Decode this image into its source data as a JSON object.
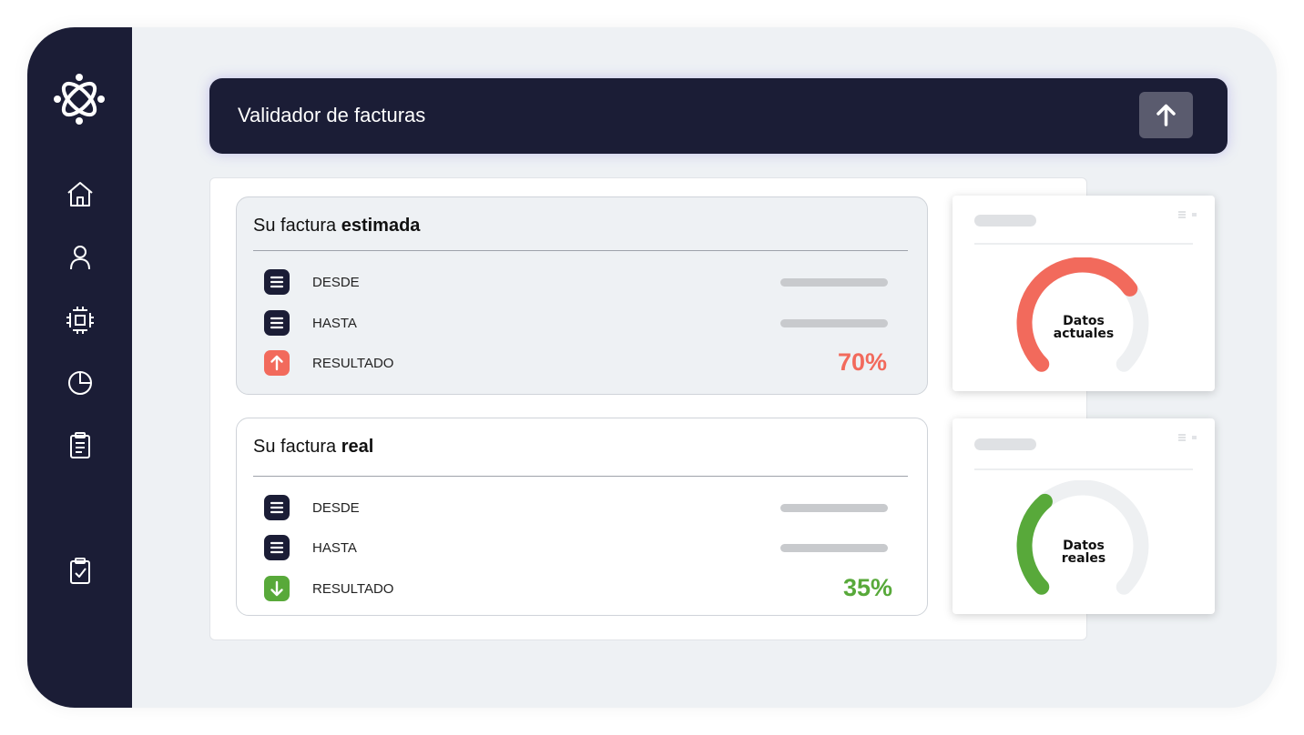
{
  "sidebar": {
    "logo": "atom-logo-icon",
    "items": [
      {
        "name": "home-icon"
      },
      {
        "name": "user-icon"
      },
      {
        "name": "chip-icon"
      },
      {
        "name": "pie-chart-icon"
      },
      {
        "name": "clipboard-list-icon"
      },
      {
        "name": "clipboard-check-icon"
      }
    ]
  },
  "header": {
    "title": "Validador de facturas",
    "upload_icon": "arrow-up-icon"
  },
  "estimated": {
    "title_prefix": "Su factura ",
    "title_bold": "estimada",
    "rows": [
      {
        "label": "DESDE",
        "icon": "list-icon"
      },
      {
        "label": "HASTA",
        "icon": "list-icon"
      },
      {
        "label": "RESULTADO",
        "icon": "arrow-up-icon",
        "value": "70%"
      }
    ],
    "result_color": "#f26a5c"
  },
  "real": {
    "title_prefix": "Su factura ",
    "title_bold": "real",
    "rows": [
      {
        "label": "DESDE",
        "icon": "list-icon"
      },
      {
        "label": "HASTA",
        "icon": "list-icon"
      },
      {
        "label": "RESULTADO",
        "icon": "arrow-down-icon",
        "value": "35%"
      }
    ],
    "result_color": "#58a93a"
  },
  "gauges": [
    {
      "line1": "Datos",
      "line2": "actuales",
      "level": 0.7,
      "color": "#f26a5c"
    },
    {
      "line1": "Datos",
      "line2": "reales",
      "level": 0.35,
      "color": "#58a93a"
    }
  ],
  "colors": {
    "navy": "#1b1d36",
    "track": "#eef0f2"
  }
}
